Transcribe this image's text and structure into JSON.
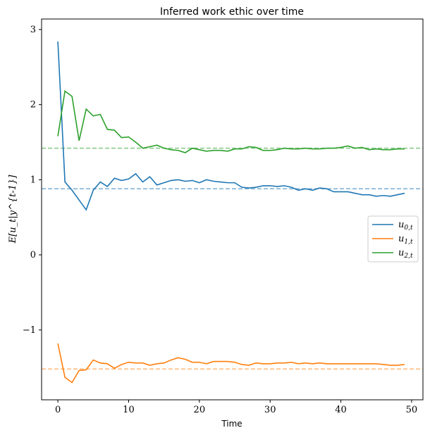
{
  "chart_data": {
    "type": "line",
    "title": "Inferred work ethic over time",
    "xlabel": "Time",
    "ylabel": "E[u_t|y^{t-1}]",
    "xlim": [
      -2.3,
      51.6
    ],
    "ylim": [
      -1.93,
      3.14
    ],
    "xticks": [
      0,
      10,
      20,
      30,
      40,
      50
    ],
    "xtick_labels": [
      "0",
      "10",
      "20",
      "30",
      "40",
      "50"
    ],
    "yticks": [
      -1,
      0,
      1,
      2,
      3
    ],
    "ytick_labels": [
      "−1",
      "0",
      "1",
      "2",
      "3"
    ],
    "grid": false,
    "legend_position": "center-right",
    "series": [
      {
        "name": "u_{0,t}",
        "label_main": "u",
        "label_sub": "0,t",
        "color": "#1f77b4",
        "truth": 0.88,
        "values": [
          2.84,
          0.97,
          0.86,
          0.73,
          0.6,
          0.86,
          0.97,
          0.91,
          1.02,
          0.99,
          1.01,
          1.08,
          0.97,
          1.04,
          0.93,
          0.96,
          0.99,
          1.0,
          0.98,
          0.99,
          0.96,
          1.0,
          0.98,
          0.97,
          0.96,
          0.96,
          0.9,
          0.89,
          0.9,
          0.92,
          0.92,
          0.91,
          0.92,
          0.9,
          0.86,
          0.88,
          0.86,
          0.89,
          0.88,
          0.84,
          0.84,
          0.84,
          0.82,
          0.8,
          0.8,
          0.78,
          0.79,
          0.78,
          0.8,
          0.82
        ]
      },
      {
        "name": "u_{1,t}",
        "label_main": "u",
        "label_sub": "1,t",
        "color": "#ff7f0e",
        "truth": -1.52,
        "values": [
          -1.18,
          -1.63,
          -1.7,
          -1.54,
          -1.53,
          -1.4,
          -1.44,
          -1.45,
          -1.51,
          -1.46,
          -1.43,
          -1.44,
          -1.44,
          -1.47,
          -1.45,
          -1.44,
          -1.4,
          -1.37,
          -1.39,
          -1.43,
          -1.43,
          -1.45,
          -1.42,
          -1.42,
          -1.42,
          -1.43,
          -1.46,
          -1.47,
          -1.44,
          -1.45,
          -1.45,
          -1.44,
          -1.44,
          -1.43,
          -1.45,
          -1.44,
          -1.45,
          -1.44,
          -1.45,
          -1.45,
          -1.45,
          -1.45,
          -1.45,
          -1.45,
          -1.45,
          -1.45,
          -1.46,
          -1.47,
          -1.47,
          -1.46
        ]
      },
      {
        "name": "u_{2,t}",
        "label_main": "u",
        "label_sub": "2,t",
        "color": "#2ca02c",
        "truth": 1.42,
        "values": [
          1.58,
          2.18,
          2.11,
          1.52,
          1.94,
          1.85,
          1.87,
          1.67,
          1.66,
          1.56,
          1.57,
          1.5,
          1.42,
          1.44,
          1.46,
          1.42,
          1.4,
          1.39,
          1.36,
          1.42,
          1.4,
          1.38,
          1.39,
          1.39,
          1.38,
          1.41,
          1.41,
          1.44,
          1.43,
          1.39,
          1.39,
          1.4,
          1.42,
          1.41,
          1.41,
          1.42,
          1.41,
          1.41,
          1.42,
          1.42,
          1.43,
          1.45,
          1.42,
          1.43,
          1.4,
          1.41,
          1.4,
          1.4,
          1.41,
          1.41
        ]
      }
    ]
  }
}
